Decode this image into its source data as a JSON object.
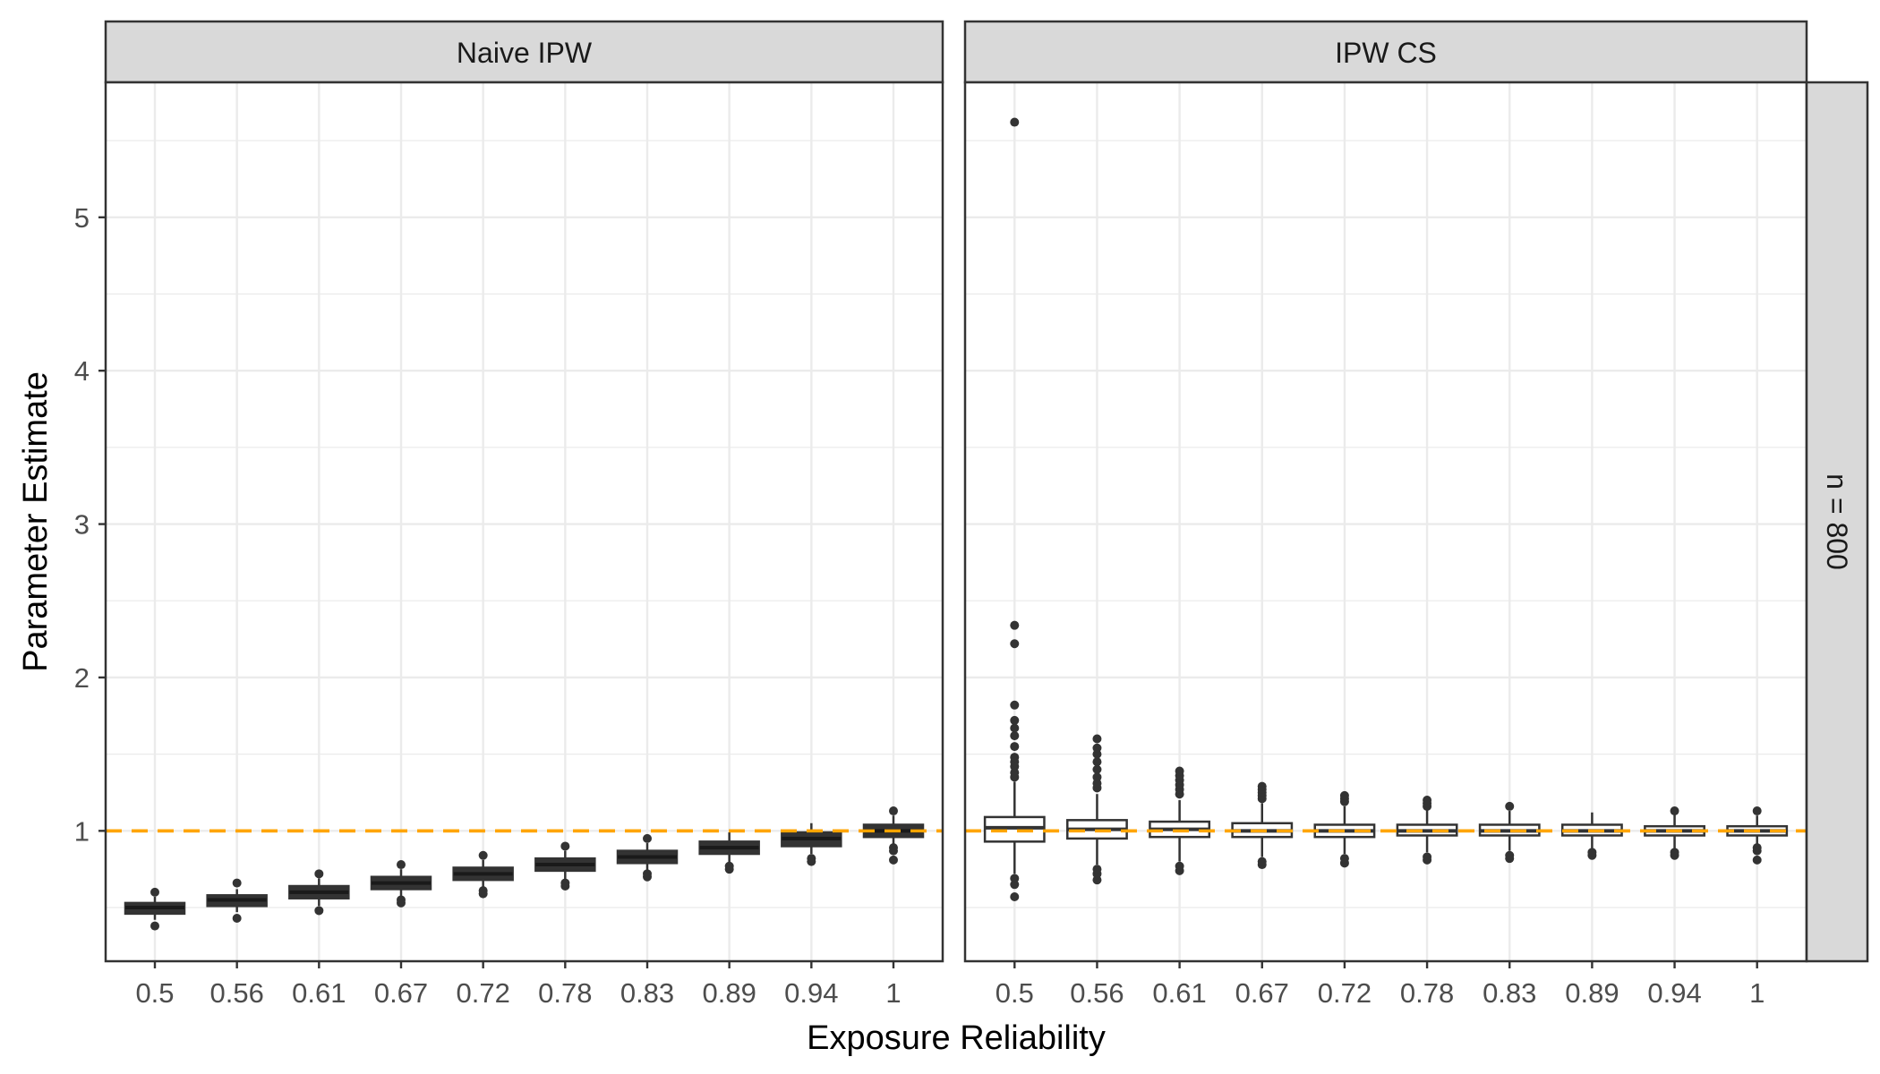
{
  "chart_data": {
    "type": "boxplot",
    "xlabel": "Exposure Reliability",
    "ylabel": "Parameter Estimate",
    "row_strip": "n = 800",
    "categories": [
      "0.5",
      "0.56",
      "0.61",
      "0.67",
      "0.72",
      "0.78",
      "0.83",
      "0.89",
      "0.94",
      "1"
    ],
    "ylim": [
      0.15,
      5.88
    ],
    "yticks": [
      1,
      2,
      3,
      4,
      5
    ],
    "ytick_labels": [
      "1",
      "2",
      "3",
      "4",
      "5"
    ],
    "minor_yticks": [
      1.5,
      2.5,
      3.5,
      4.5,
      5.5,
      0.5
    ],
    "reference_line": {
      "y": 1.0,
      "color": "#FFA500",
      "style": "dashed"
    },
    "colors": {
      "strip_fill": "#d9d9d9",
      "border": "#333333",
      "grid": "#ebebeb",
      "box_line": "#333333",
      "naive_box_fill": "#333333",
      "cs_box_fill": "#ffffff"
    },
    "panels": [
      {
        "title": "Naive IPW",
        "boxes": [
          {
            "category": "0.5",
            "min": 0.42,
            "q1": 0.46,
            "median": 0.5,
            "q3": 0.53,
            "max": 0.57,
            "outliers": [
              0.38,
              0.6
            ]
          },
          {
            "category": "0.56",
            "min": 0.47,
            "q1": 0.51,
            "median": 0.55,
            "q3": 0.58,
            "max": 0.62,
            "outliers": [
              0.43,
              0.66
            ]
          },
          {
            "category": "0.61",
            "min": 0.51,
            "q1": 0.56,
            "median": 0.6,
            "q3": 0.64,
            "max": 0.69,
            "outliers": [
              0.48,
              0.72
            ]
          },
          {
            "category": "0.67",
            "min": 0.57,
            "q1": 0.62,
            "median": 0.66,
            "q3": 0.7,
            "max": 0.75,
            "outliers": [
              0.53,
              0.55,
              0.78
            ]
          },
          {
            "category": "0.72",
            "min": 0.62,
            "q1": 0.68,
            "median": 0.72,
            "q3": 0.76,
            "max": 0.81,
            "outliers": [
              0.59,
              0.61,
              0.84
            ]
          },
          {
            "category": "0.78",
            "min": 0.68,
            "q1": 0.74,
            "median": 0.78,
            "q3": 0.82,
            "max": 0.87,
            "outliers": [
              0.64,
              0.66,
              0.9
            ]
          },
          {
            "category": "0.83",
            "min": 0.74,
            "q1": 0.79,
            "median": 0.83,
            "q3": 0.87,
            "max": 0.92,
            "outliers": [
              0.7,
              0.72,
              0.95
            ]
          },
          {
            "category": "0.89",
            "min": 0.79,
            "q1": 0.85,
            "median": 0.89,
            "q3": 0.93,
            "max": 0.99,
            "outliers": [
              0.75,
              0.77
            ]
          },
          {
            "category": "0.94",
            "min": 0.85,
            "q1": 0.9,
            "median": 0.95,
            "q3": 0.99,
            "max": 1.05,
            "outliers": [
              0.8,
              0.82
            ]
          },
          {
            "category": "1",
            "min": 0.9,
            "q1": 0.96,
            "median": 1.0,
            "q3": 1.04,
            "max": 1.1,
            "outliers": [
              0.81,
              0.87,
              0.89,
              1.13
            ]
          }
        ]
      },
      {
        "title": "IPW CS",
        "boxes": [
          {
            "category": "0.5",
            "min": 0.72,
            "q1": 0.93,
            "median": 1.02,
            "q3": 1.09,
            "max": 1.32,
            "outliers": [
              0.57,
              0.65,
              0.69,
              1.35,
              1.38,
              1.42,
              1.45,
              1.48,
              1.55,
              1.62,
              1.67,
              1.72,
              1.82,
              2.22,
              2.34,
              5.62
            ]
          },
          {
            "category": "0.56",
            "min": 0.78,
            "q1": 0.95,
            "median": 1.01,
            "q3": 1.07,
            "max": 1.24,
            "outliers": [
              0.68,
              0.72,
              0.75,
              1.28,
              1.31,
              1.35,
              1.4,
              1.45,
              1.5,
              1.54,
              1.6
            ]
          },
          {
            "category": "0.61",
            "min": 0.8,
            "q1": 0.96,
            "median": 1.01,
            "q3": 1.06,
            "max": 1.2,
            "outliers": [
              0.74,
              0.77,
              1.24,
              1.27,
              1.3,
              1.33,
              1.36,
              1.39
            ]
          },
          {
            "category": "0.67",
            "min": 0.83,
            "q1": 0.96,
            "median": 1.0,
            "q3": 1.05,
            "max": 1.18,
            "outliers": [
              0.78,
              0.8,
              1.21,
              1.23,
              1.25,
              1.27,
              1.29
            ]
          },
          {
            "category": "0.72",
            "min": 0.85,
            "q1": 0.96,
            "median": 1.0,
            "q3": 1.04,
            "max": 1.16,
            "outliers": [
              0.79,
              0.82,
              1.19,
              1.21,
              1.23
            ]
          },
          {
            "category": "0.78",
            "min": 0.86,
            "q1": 0.97,
            "median": 1.0,
            "q3": 1.04,
            "max": 1.14,
            "outliers": [
              0.81,
              0.83,
              1.16,
              1.18,
              1.2
            ]
          },
          {
            "category": "0.83",
            "min": 0.87,
            "q1": 0.97,
            "median": 1.0,
            "q3": 1.04,
            "max": 1.13,
            "outliers": [
              0.82,
              0.84,
              1.16
            ]
          },
          {
            "category": "0.89",
            "min": 0.88,
            "q1": 0.97,
            "median": 1.0,
            "q3": 1.04,
            "max": 1.12,
            "outliers": [
              0.84,
              0.86
            ]
          },
          {
            "category": "0.94",
            "min": 0.88,
            "q1": 0.97,
            "median": 1.0,
            "q3": 1.03,
            "max": 1.11,
            "outliers": [
              0.84,
              0.86,
              1.13
            ]
          },
          {
            "category": "1",
            "min": 0.89,
            "q1": 0.97,
            "median": 1.0,
            "q3": 1.03,
            "max": 1.1,
            "outliers": [
              0.81,
              0.87,
              0.89,
              1.13
            ]
          }
        ]
      }
    ]
  }
}
